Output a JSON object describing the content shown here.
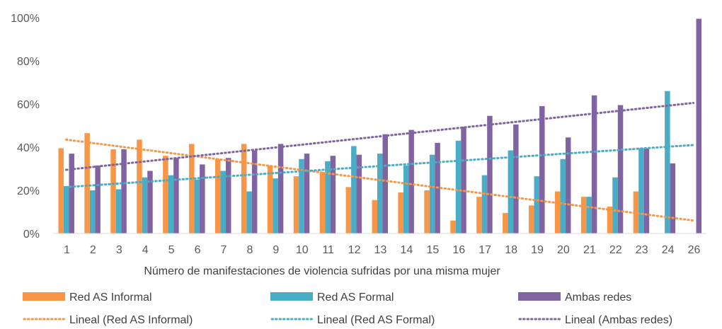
{
  "chart_data": {
    "type": "bar",
    "xlabel": "Número de manifestaciones de violencia sufridas por una misma mujer",
    "ylabel": "",
    "ylim": [
      0,
      100
    ],
    "yticks": [
      "0%",
      "20%",
      "40%",
      "60%",
      "80%",
      "100%"
    ],
    "categories": [
      "1",
      "2",
      "3",
      "4",
      "5",
      "6",
      "7",
      "8",
      "9",
      "10",
      "11",
      "12",
      "13",
      "14",
      "15",
      "16",
      "17",
      "18",
      "19",
      "20",
      "21",
      "22",
      "23",
      "24",
      "26"
    ],
    "series": [
      {
        "name": "Red AS Informal",
        "color": "#F79646",
        "values": [
          39.5,
          46.5,
          39,
          43.5,
          36,
          41.5,
          34.5,
          41.5,
          31.5,
          26.5,
          28.5,
          21.5,
          15.5,
          19,
          20,
          6,
          17,
          9.5,
          13,
          19.5,
          17,
          12.5,
          19.5,
          0,
          0
        ]
      },
      {
        "name": "Red AS Formal",
        "color": "#4BACC6",
        "values": [
          22,
          20,
          20.5,
          26,
          27,
          25,
          29,
          19.5,
          25.5,
          34.5,
          33.5,
          40.5,
          37,
          31.5,
          36.5,
          43,
          27,
          38.5,
          26.5,
          34.5,
          17,
          26,
          39.5,
          66,
          0
        ]
      },
      {
        "name": "Ambas redes",
        "color": "#8064A2",
        "values": [
          37,
          31.5,
          39,
          29,
          35,
          32,
          35,
          38.5,
          41.5,
          37,
          36,
          36.5,
          46,
          48,
          42,
          49.5,
          54.5,
          50.5,
          59,
          44.5,
          64,
          59.5,
          39.5,
          32.5,
          99.5
        ]
      }
    ],
    "trendlines": [
      {
        "name": "Lineal (Red AS Informal)",
        "color": "#F79646",
        "start": 43.5,
        "end": 6
      },
      {
        "name": "Lineal (Red AS Formal)",
        "color": "#4BACC6",
        "start": 21.5,
        "end": 41
      },
      {
        "name": "Lineal (Ambas redes)",
        "color": "#8064A2",
        "start": 29.5,
        "end": 60.5
      }
    ],
    "grid": false,
    "legend_position": "bottom"
  }
}
